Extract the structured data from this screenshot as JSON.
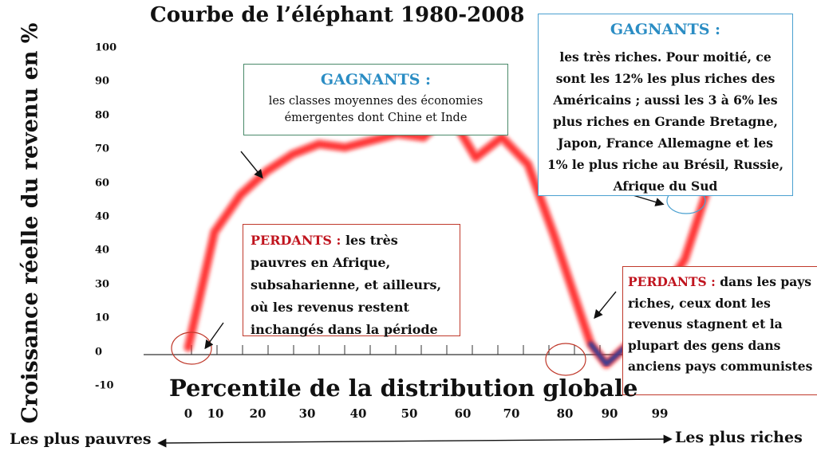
{
  "title": "Courbe de l’éléphant 1980-2008",
  "chart_data": {
    "type": "line",
    "title": "Courbe de l’éléphant 1980-2008",
    "xlabel": "Percentile de la distribution globale",
    "ylabel": "Croissance réelle du revenu en %",
    "y_tick_labels": [
      "100",
      "90",
      "80",
      "70",
      "60",
      "40",
      "40",
      "30",
      "10",
      "0",
      "-10"
    ],
    "x_tick_labels": [
      "0",
      "10",
      "20",
      "30",
      "40",
      "50",
      "60",
      "70",
      "80",
      "90",
      "99"
    ],
    "series": [
      {
        "color": "#ff2020",
        "x": [
          0,
          5,
          10,
          15,
          20,
          25,
          30,
          35,
          40,
          45,
          50,
          55,
          60,
          65,
          70,
          75,
          77,
          80,
          85,
          90,
          95,
          99
        ],
        "y": [
          1,
          35,
          46,
          53,
          58,
          61,
          60,
          62,
          64,
          63,
          70,
          57,
          63,
          55,
          34,
          11,
          2,
          -4,
          3,
          15,
          27,
          46
        ]
      }
    ],
    "lowlight_color": "#1a3fa0",
    "grid": false
  },
  "annotations": {
    "winners_middle": {
      "title": "GAGNANTS :",
      "text": "les classes moyennes des économies émergentes dont Chine et Inde"
    },
    "winners_top": {
      "title": "GAGNANTS :",
      "text": "les très riches. Pour moitié, ce sont les 12% les plus riches des Américains ; aussi les 3 à 6% les plus riches en Grande Bretagne, Japon, France Allemagne et les 1% le plus riche au Brésil, Russie, Afrique du Sud"
    },
    "losers_poor": {
      "label": "PERDANTS :",
      "text": "les très pauvres en Afrique, subsaharienne, et ailleurs, où les revenus restent inchangés dans la période"
    },
    "losers_rich": {
      "label": "PERDANTS :",
      "text": "dans les pays riches, ceux dont les revenus stagnent et la plupart des gens dans anciens pays communistes"
    }
  },
  "axis_ends": {
    "left": "Les plus pauvres",
    "right": "Les plus riches"
  },
  "colors": {
    "winner_title": "#2b8dc4",
    "loser_label": "#c0141e",
    "curve": "#ff2020"
  }
}
